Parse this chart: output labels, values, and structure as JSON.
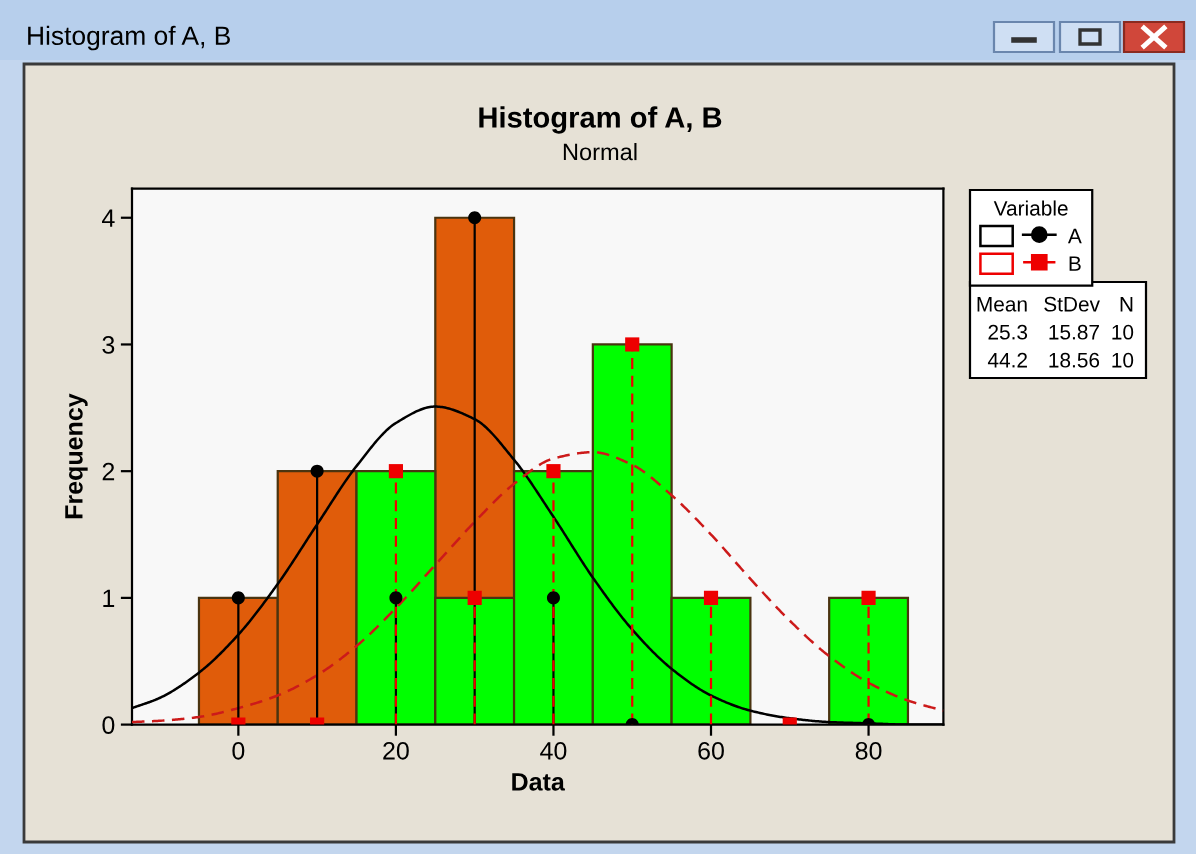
{
  "chart_data": {
    "type": "histogram",
    "title": "Histogram of A, B",
    "subtitle": "Normal",
    "xlabel": "Data",
    "ylabel": "Frequency",
    "legend_title": "Variable",
    "legend": "right",
    "bins": [
      -5,
      5,
      15,
      25,
      35,
      45,
      55,
      65,
      75,
      85
    ],
    "series": [
      {
        "color": "#e05c0a",
        "values": [
          1,
          2,
          null,
          4,
          null,
          0,
          null,
          0,
          0
        ]
      },
      {
        "color": "#00ff00",
        "values": [
          0,
          0,
          2,
          1,
          2,
          3,
          1,
          0,
          1
        ]
      },
      {
        "type": "lollipop",
        "name": "A",
        "color": "#000000",
        "marker": "circle",
        "line_style": "solid",
        "x": [
          0,
          10,
          20,
          30,
          40,
          50,
          60,
          70,
          80
        ],
        "values": [
          1,
          2,
          1,
          4,
          1,
          0,
          null,
          null,
          0
        ]
      },
      {
        "type": "lollipop",
        "name": "B",
        "color": "#ee0000",
        "marker": "square",
        "line_style": "dashed",
        "x": [
          0,
          10,
          20,
          30,
          40,
          50,
          60,
          70,
          80
        ],
        "values": [
          0,
          0,
          2,
          1,
          2,
          3,
          1,
          0,
          1
        ]
      },
      {
        "type": "line",
        "color": "#000000",
        "line_style": "solid",
        "x": [
          -13.5,
          -10,
          -5,
          0,
          5,
          10,
          15,
          20,
          25,
          30,
          35,
          40,
          45,
          50,
          55,
          60,
          65,
          70,
          75,
          80,
          85,
          89.5
        ],
        "values": [
          0.13,
          0.21,
          0.41,
          0.71,
          1.11,
          1.58,
          2.04,
          2.38,
          2.51,
          2.41,
          2.09,
          1.64,
          1.16,
          0.75,
          0.44,
          0.23,
          0.11,
          0.05,
          0.02,
          0.01,
          0.0,
          0.0
        ]
      },
      {
        "type": "line",
        "color": "#cc1a1a",
        "line_style": "dashed",
        "x": [
          -13.5,
          -10,
          -5,
          0,
          5,
          10,
          15,
          20,
          25,
          30,
          35,
          40,
          45,
          50,
          55,
          60,
          65,
          70,
          75,
          80,
          85,
          89.5
        ],
        "values": [
          0.02,
          0.03,
          0.06,
          0.13,
          0.23,
          0.39,
          0.62,
          0.92,
          1.26,
          1.6,
          1.9,
          2.1,
          2.15,
          2.05,
          1.81,
          1.5,
          1.15,
          0.82,
          0.54,
          0.33,
          0.19,
          0.11
        ]
      }
    ],
    "xlim": [
      -13.5,
      89.5
    ],
    "ylim": [
      0,
      4.23
    ],
    "xticks": [
      0,
      20,
      40,
      60,
      80
    ],
    "yticks": [
      0,
      1,
      2,
      3,
      4
    ],
    "annotations": [
      "Histogram of A, B",
      "Mean",
      "StDev",
      "N",
      "25.3",
      "15.87",
      "10",
      "44.2",
      "18.56",
      "10"
    ]
  }
}
